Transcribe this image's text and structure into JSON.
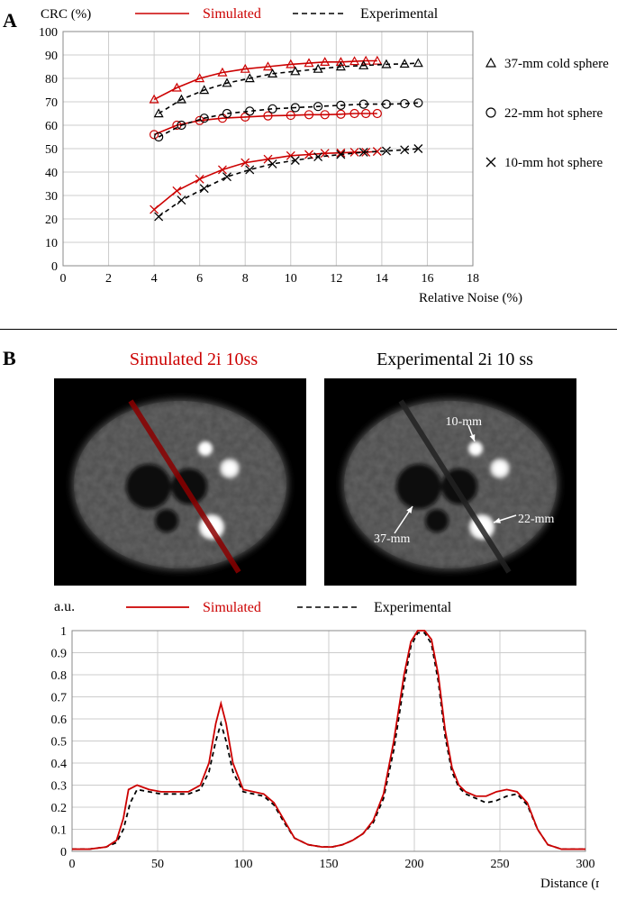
{
  "panelA": {
    "label": "A",
    "yAxisLabel": "CRC (%)",
    "xAxisLabel": "Relative Noise (%)",
    "legendTop": {
      "simLabel": "Simulated",
      "expLabel": "Experimental",
      "simColor": "#cc0000",
      "expColor": "#000000"
    },
    "sideLegend": [
      {
        "marker": "triangle",
        "label": "37-mm cold sphere"
      },
      {
        "marker": "circle",
        "label": "22-mm hot sphere"
      },
      {
        "marker": "cross",
        "label": "10-mm hot sphere"
      }
    ],
    "xlim": [
      0,
      18
    ],
    "ylim": [
      0,
      100
    ],
    "xticks": [
      0,
      2,
      4,
      6,
      8,
      10,
      12,
      14,
      16,
      18
    ],
    "yticks": [
      0,
      10,
      20,
      30,
      40,
      50,
      60,
      70,
      80,
      90,
      100
    ],
    "gridColor": "#cccccc",
    "series": {
      "sim_tri": {
        "color": "#cc0000",
        "marker": "triangle",
        "pts": [
          [
            4.0,
            71
          ],
          [
            5.0,
            76
          ],
          [
            6.0,
            80
          ],
          [
            7.0,
            82.5
          ],
          [
            8.0,
            84
          ],
          [
            9.0,
            85
          ],
          [
            10.0,
            86
          ],
          [
            10.8,
            86.5
          ],
          [
            11.5,
            87
          ],
          [
            12.2,
            87
          ],
          [
            12.8,
            87.3
          ],
          [
            13.3,
            87.5
          ],
          [
            13.8,
            87.5
          ]
        ]
      },
      "exp_tri": {
        "color": "#000000",
        "marker": "triangle",
        "dash": true,
        "pts": [
          [
            4.2,
            65
          ],
          [
            5.2,
            71
          ],
          [
            6.2,
            75
          ],
          [
            7.2,
            78
          ],
          [
            8.2,
            80
          ],
          [
            9.2,
            82
          ],
          [
            10.2,
            83
          ],
          [
            11.2,
            84
          ],
          [
            12.2,
            85
          ],
          [
            13.2,
            85.5
          ],
          [
            14.2,
            86
          ],
          [
            15.0,
            86.2
          ],
          [
            15.6,
            86.5
          ]
        ]
      },
      "sim_cir": {
        "color": "#cc0000",
        "marker": "circle",
        "pts": [
          [
            4.0,
            56
          ],
          [
            5.0,
            60
          ],
          [
            6.0,
            62
          ],
          [
            7.0,
            63
          ],
          [
            8.0,
            63.5
          ],
          [
            9.0,
            64
          ],
          [
            10.0,
            64.2
          ],
          [
            10.8,
            64.5
          ],
          [
            11.5,
            64.5
          ],
          [
            12.2,
            64.7
          ],
          [
            12.8,
            65
          ],
          [
            13.3,
            65
          ],
          [
            13.8,
            65
          ]
        ]
      },
      "exp_cir": {
        "color": "#000000",
        "marker": "circle",
        "dash": true,
        "pts": [
          [
            4.2,
            55
          ],
          [
            5.2,
            60
          ],
          [
            6.2,
            63
          ],
          [
            7.2,
            65
          ],
          [
            8.2,
            66
          ],
          [
            9.2,
            67
          ],
          [
            10.2,
            67.5
          ],
          [
            11.2,
            68
          ],
          [
            12.2,
            68.5
          ],
          [
            13.2,
            69
          ],
          [
            14.2,
            69
          ],
          [
            15.0,
            69.2
          ],
          [
            15.6,
            69.5
          ]
        ]
      },
      "sim_x": {
        "color": "#cc0000",
        "marker": "cross",
        "pts": [
          [
            4.0,
            24
          ],
          [
            5.0,
            32
          ],
          [
            6.0,
            37
          ],
          [
            7.0,
            41
          ],
          [
            8.0,
            44
          ],
          [
            9.0,
            45.5
          ],
          [
            10.0,
            47
          ],
          [
            10.8,
            47.5
          ],
          [
            11.5,
            48
          ],
          [
            12.2,
            48.2
          ],
          [
            12.8,
            48.5
          ],
          [
            13.3,
            48.5
          ],
          [
            13.8,
            48.8
          ]
        ]
      },
      "exp_x": {
        "color": "#000000",
        "marker": "cross",
        "dash": true,
        "pts": [
          [
            4.2,
            21
          ],
          [
            5.2,
            28
          ],
          [
            6.2,
            33
          ],
          [
            7.2,
            38
          ],
          [
            8.2,
            41
          ],
          [
            9.2,
            43.5
          ],
          [
            10.2,
            45
          ],
          [
            11.2,
            46.5
          ],
          [
            12.2,
            47.5
          ],
          [
            13.2,
            48.5
          ],
          [
            14.2,
            49
          ],
          [
            15.0,
            49.5
          ],
          [
            15.6,
            50
          ]
        ]
      }
    },
    "fontSizeAxis": 15,
    "fontSizeTick": 14
  },
  "panelB": {
    "label": "B",
    "titleLeft": "Simulated 2i 10ss",
    "titleRight": "Experimental 2i 10 ss",
    "titleLeftColor": "#cc0000",
    "titleRightColor": "#000000",
    "annotations": {
      "a37": "37-mm",
      "a22": "22-mm",
      "a10": "10-mm"
    },
    "phantom": {
      "bg": "#000000",
      "body": "#4e4e4e",
      "hot": "#ffffff",
      "cold": "#080808",
      "noise": "#5c5c5c"
    },
    "profileChart": {
      "yAxisLabel": "a.u.",
      "xAxisLabel": "Distance (mm)",
      "legend": {
        "simLabel": "Simulated",
        "expLabel": "Experimental",
        "simColor": "#cc0000",
        "expColor": "#000000"
      },
      "xlim": [
        0,
        300
      ],
      "ylim": [
        0,
        1
      ],
      "xticks": [
        0,
        50,
        100,
        150,
        200,
        250,
        300
      ],
      "yticks": [
        0,
        0.1,
        0.2,
        0.3,
        0.4,
        0.5,
        0.6,
        0.7,
        0.8,
        0.9,
        1
      ],
      "gridColor": "#cccccc",
      "sim": {
        "color": "#cc0000",
        "pts": [
          [
            0,
            0.01
          ],
          [
            10,
            0.01
          ],
          [
            20,
            0.02
          ],
          [
            26,
            0.05
          ],
          [
            30,
            0.15
          ],
          [
            33,
            0.28
          ],
          [
            38,
            0.3
          ],
          [
            45,
            0.28
          ],
          [
            52,
            0.27
          ],
          [
            60,
            0.27
          ],
          [
            68,
            0.27
          ],
          [
            75,
            0.3
          ],
          [
            80,
            0.4
          ],
          [
            84,
            0.58
          ],
          [
            87,
            0.67
          ],
          [
            90,
            0.58
          ],
          [
            94,
            0.4
          ],
          [
            100,
            0.28
          ],
          [
            106,
            0.27
          ],
          [
            112,
            0.26
          ],
          [
            118,
            0.22
          ],
          [
            124,
            0.14
          ],
          [
            130,
            0.06
          ],
          [
            138,
            0.03
          ],
          [
            146,
            0.02
          ],
          [
            152,
            0.02
          ],
          [
            158,
            0.03
          ],
          [
            164,
            0.05
          ],
          [
            170,
            0.08
          ],
          [
            176,
            0.14
          ],
          [
            182,
            0.26
          ],
          [
            188,
            0.5
          ],
          [
            194,
            0.8
          ],
          [
            198,
            0.95
          ],
          [
            202,
            1.0
          ],
          [
            206,
            1.0
          ],
          [
            210,
            0.96
          ],
          [
            214,
            0.8
          ],
          [
            218,
            0.55
          ],
          [
            222,
            0.38
          ],
          [
            226,
            0.3
          ],
          [
            230,
            0.27
          ],
          [
            236,
            0.25
          ],
          [
            242,
            0.25
          ],
          [
            248,
            0.27
          ],
          [
            254,
            0.28
          ],
          [
            260,
            0.27
          ],
          [
            266,
            0.22
          ],
          [
            272,
            0.1
          ],
          [
            278,
            0.03
          ],
          [
            286,
            0.01
          ],
          [
            295,
            0.01
          ],
          [
            300,
            0.01
          ]
        ]
      },
      "exp": {
        "color": "#000000",
        "dash": true,
        "pts": [
          [
            0,
            0.01
          ],
          [
            10,
            0.01
          ],
          [
            20,
            0.02
          ],
          [
            26,
            0.04
          ],
          [
            30,
            0.1
          ],
          [
            34,
            0.22
          ],
          [
            38,
            0.28
          ],
          [
            45,
            0.27
          ],
          [
            52,
            0.26
          ],
          [
            60,
            0.26
          ],
          [
            68,
            0.26
          ],
          [
            75,
            0.28
          ],
          [
            80,
            0.36
          ],
          [
            84,
            0.5
          ],
          [
            87,
            0.58
          ],
          [
            90,
            0.5
          ],
          [
            94,
            0.36
          ],
          [
            100,
            0.27
          ],
          [
            106,
            0.26
          ],
          [
            112,
            0.25
          ],
          [
            118,
            0.21
          ],
          [
            124,
            0.13
          ],
          [
            130,
            0.06
          ],
          [
            138,
            0.03
          ],
          [
            146,
            0.02
          ],
          [
            152,
            0.02
          ],
          [
            158,
            0.03
          ],
          [
            164,
            0.05
          ],
          [
            170,
            0.08
          ],
          [
            176,
            0.13
          ],
          [
            182,
            0.24
          ],
          [
            188,
            0.46
          ],
          [
            194,
            0.76
          ],
          [
            198,
            0.93
          ],
          [
            202,
            0.99
          ],
          [
            206,
            0.99
          ],
          [
            210,
            0.94
          ],
          [
            214,
            0.77
          ],
          [
            218,
            0.52
          ],
          [
            222,
            0.36
          ],
          [
            226,
            0.29
          ],
          [
            230,
            0.26
          ],
          [
            236,
            0.24
          ],
          [
            242,
            0.22
          ],
          [
            248,
            0.23
          ],
          [
            254,
            0.25
          ],
          [
            260,
            0.26
          ],
          [
            266,
            0.21
          ],
          [
            272,
            0.1
          ],
          [
            278,
            0.03
          ],
          [
            286,
            0.01
          ],
          [
            295,
            0.01
          ],
          [
            300,
            0.01
          ]
        ]
      }
    }
  }
}
